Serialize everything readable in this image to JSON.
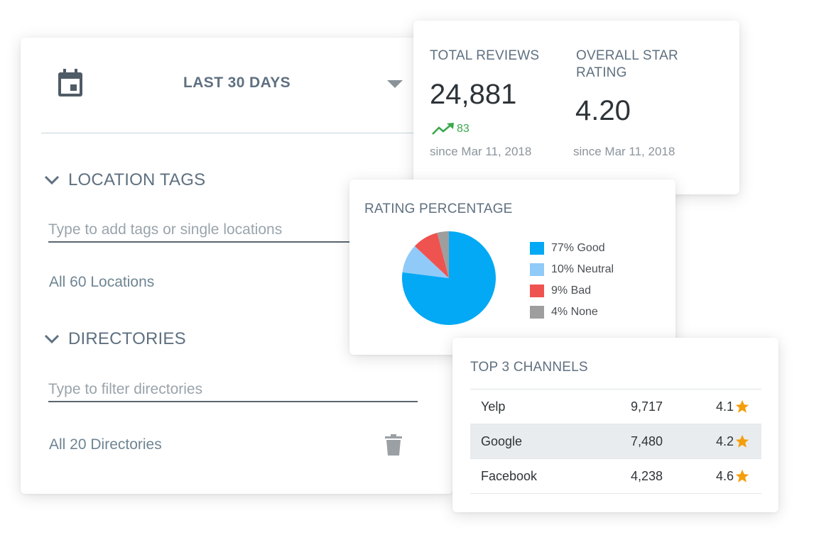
{
  "filter": {
    "date_range": "LAST 30 DAYS",
    "location_tags": {
      "heading": "LOCATION TAGS",
      "placeholder": "Type to add tags or single locations",
      "summary": "All 60 Locations"
    },
    "directories": {
      "heading": "DIRECTORIES",
      "placeholder": "Type to filter directories",
      "summary": "All 20 Directories"
    },
    "icons": [
      "calendar-icon",
      "caret-down-icon",
      "chevron-down-icon",
      "trash-icon"
    ]
  },
  "totals": {
    "reviews": {
      "label": "TOTAL REVIEWS",
      "value": "24,881",
      "change": "83",
      "since": "since Mar 11, 2018"
    },
    "rating": {
      "label_line1": "OVERALL STAR",
      "label_line2": "RATING",
      "value": "4.20",
      "since": "since Mar 11, 2018"
    }
  },
  "rating_percentage": {
    "title": "RATING PERCENTAGE",
    "legend": [
      {
        "label": "77% Good",
        "color": "#03a9f4"
      },
      {
        "label": "10% Neutral",
        "color": "#90caf9"
      },
      {
        "label": "9% Bad",
        "color": "#ef5350"
      },
      {
        "label": "4% None",
        "color": "#9e9e9e"
      }
    ]
  },
  "chart_data": {
    "type": "pie",
    "title": "RATING PERCENTAGE",
    "categories": [
      "Good",
      "Neutral",
      "Bad",
      "None"
    ],
    "values": [
      77,
      10,
      9,
      4
    ],
    "colors": [
      "#03a9f4",
      "#90caf9",
      "#ef5350",
      "#9e9e9e"
    ],
    "legend_position": "right"
  },
  "channels": {
    "title": "TOP 3 CHANNELS",
    "rows": [
      {
        "name": "Yelp",
        "count": "9,717",
        "rating": "4.1"
      },
      {
        "name": "Google",
        "count": "7,480",
        "rating": "4.2"
      },
      {
        "name": "Facebook",
        "count": "4,238",
        "rating": "4.6"
      }
    ],
    "star_color": "#f59e0b"
  }
}
